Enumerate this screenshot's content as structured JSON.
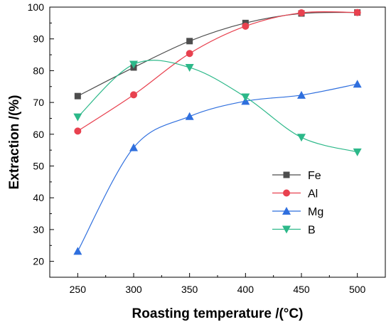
{
  "chart_data": {
    "type": "line",
    "xlabel": "Roasting temperature /(°C)",
    "ylabel": "Extraction /(%)",
    "xlim": [
      225,
      525
    ],
    "ylim": [
      15,
      100
    ],
    "x_ticks": [
      250,
      300,
      350,
      400,
      450,
      500
    ],
    "y_ticks": [
      20,
      30,
      40,
      50,
      60,
      70,
      80,
      90,
      100
    ],
    "grid": false,
    "legend_position": "lower-right",
    "x": [
      250,
      300,
      350,
      400,
      450,
      500
    ],
    "series": [
      {
        "name": "Fe",
        "marker": "square",
        "color": "#4d4d4d",
        "values": [
          72,
          81,
          89.3,
          95,
          98,
          98.3
        ]
      },
      {
        "name": "Al",
        "marker": "circle",
        "color": "#e8414f",
        "values": [
          61,
          72.4,
          85.4,
          94,
          98.2,
          98.3
        ]
      },
      {
        "name": "Mg",
        "marker": "triangle-up",
        "color": "#2f6fde",
        "values": [
          23.2,
          55.8,
          65.6,
          70.4,
          72.3,
          75.8
        ]
      },
      {
        "name": "B",
        "marker": "triangle-down",
        "color": "#2cb889",
        "values": [
          65.4,
          82,
          81,
          71.7,
          59,
          54.4
        ]
      }
    ]
  }
}
